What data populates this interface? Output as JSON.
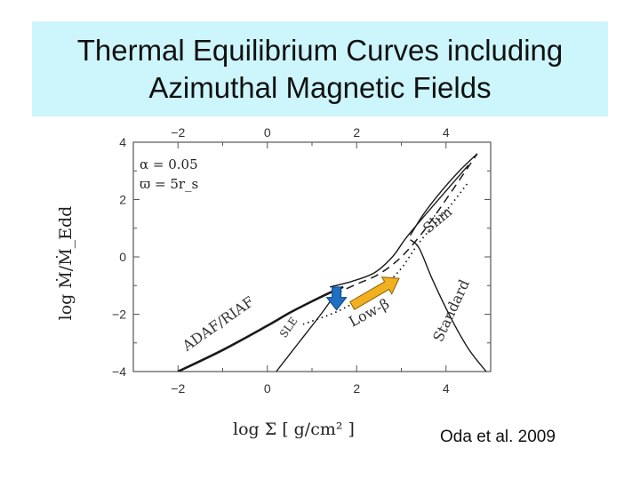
{
  "slide": {
    "title_line1": "Thermal Equilibrium Curves including",
    "title_line2": "Azimuthal Magnetic Fields",
    "citation": "Oda et al. 2009",
    "background_color": "#ccf6fb"
  },
  "chart_data": {
    "type": "line",
    "title": "",
    "xlabel": "log Σ [ g/cm² ]",
    "ylabel": "log Ṁ/Ṁ_Edd",
    "xlim": [
      -3,
      5
    ],
    "ylim": [
      -4,
      4
    ],
    "xticks": [
      -2,
      0,
      2,
      4
    ],
    "yticks": [
      -4,
      -2,
      0,
      2,
      4
    ],
    "xtick_labels": [
      "−2",
      "0",
      "2",
      "4"
    ],
    "ytick_labels": [
      "−4",
      "−2",
      "0",
      "2",
      "4"
    ],
    "parameters": [
      "α = 0.05",
      "ϖ = 5r_s"
    ],
    "grid": false,
    "series": [
      {
        "name": "ADAF/RIAF",
        "style": "solid",
        "x": [
          -2,
          -1,
          0,
          0.5,
          1.0,
          1.4,
          1.7
        ],
        "y": [
          -4.0,
          -3.25,
          -2.4,
          -1.95,
          -1.55,
          -1.25,
          -1.05
        ]
      },
      {
        "name": "",
        "style": "solid",
        "x": [
          1.4,
          1.9,
          2.4,
          2.8,
          3.1,
          3.5,
          4.0,
          4.5
        ],
        "y": [
          -1.05,
          -0.85,
          -0.55,
          0.0,
          0.65,
          1.4,
          2.3,
          3.2
        ]
      },
      {
        "name": "SLE",
        "style": "solid",
        "x": [
          0.2,
          0.7,
          1.2,
          1.5
        ],
        "y": [
          -4.0,
          -3.0,
          -2.0,
          -1.35
        ]
      },
      {
        "name": "Low-β",
        "style": "dotted",
        "x": [
          0.8,
          1.5,
          2.0,
          2.6,
          3.0,
          3.4,
          4.0,
          4.5
        ],
        "y": [
          -2.35,
          -1.95,
          -1.55,
          -1.0,
          -0.4,
          0.5,
          1.6,
          2.6
        ]
      },
      {
        "name": "",
        "style": "dashed",
        "x": [
          1.5,
          2.0,
          2.5,
          3.0,
          3.5,
          4.0,
          4.7
        ],
        "y": [
          -1.3,
          -0.95,
          -0.6,
          0.0,
          0.9,
          2.0,
          3.6
        ]
      },
      {
        "name": "Slim",
        "style": "solid",
        "x": [
          3.2,
          3.5,
          3.9,
          4.3,
          4.7
        ],
        "y": [
          0.75,
          1.5,
          2.3,
          3.0,
          3.6
        ]
      },
      {
        "name": "Standard",
        "style": "solid",
        "x": [
          3.2,
          3.4,
          3.7,
          4.1,
          4.5,
          4.9
        ],
        "y": [
          0.6,
          0.3,
          -0.8,
          -2.1,
          -3.2,
          -4.0
        ]
      }
    ],
    "annotations": [
      {
        "text": "ADAF/RIAF",
        "x": -1.8,
        "y": -3.3,
        "angle": -35
      },
      {
        "text": "SLE",
        "x": 0.4,
        "y": -2.85,
        "angle": -55
      },
      {
        "text": "Low-β",
        "x": 1.9,
        "y": -2.45,
        "angle": -28
      },
      {
        "text": "Slim",
        "x": 3.6,
        "y": 0.8,
        "angle": -40
      },
      {
        "text": "Standard",
        "x": 3.9,
        "y": -3.0,
        "angle": -65
      }
    ],
    "arrows": [
      {
        "color": "#1f6fc4",
        "direction": "down",
        "x": 1.55,
        "y_from": -1.05,
        "y_to": -1.85
      },
      {
        "color": "#f0b020",
        "direction": "up-right",
        "x_from": 1.9,
        "y_from": -1.7,
        "x_to": 2.95,
        "y_to": -0.75
      }
    ]
  }
}
